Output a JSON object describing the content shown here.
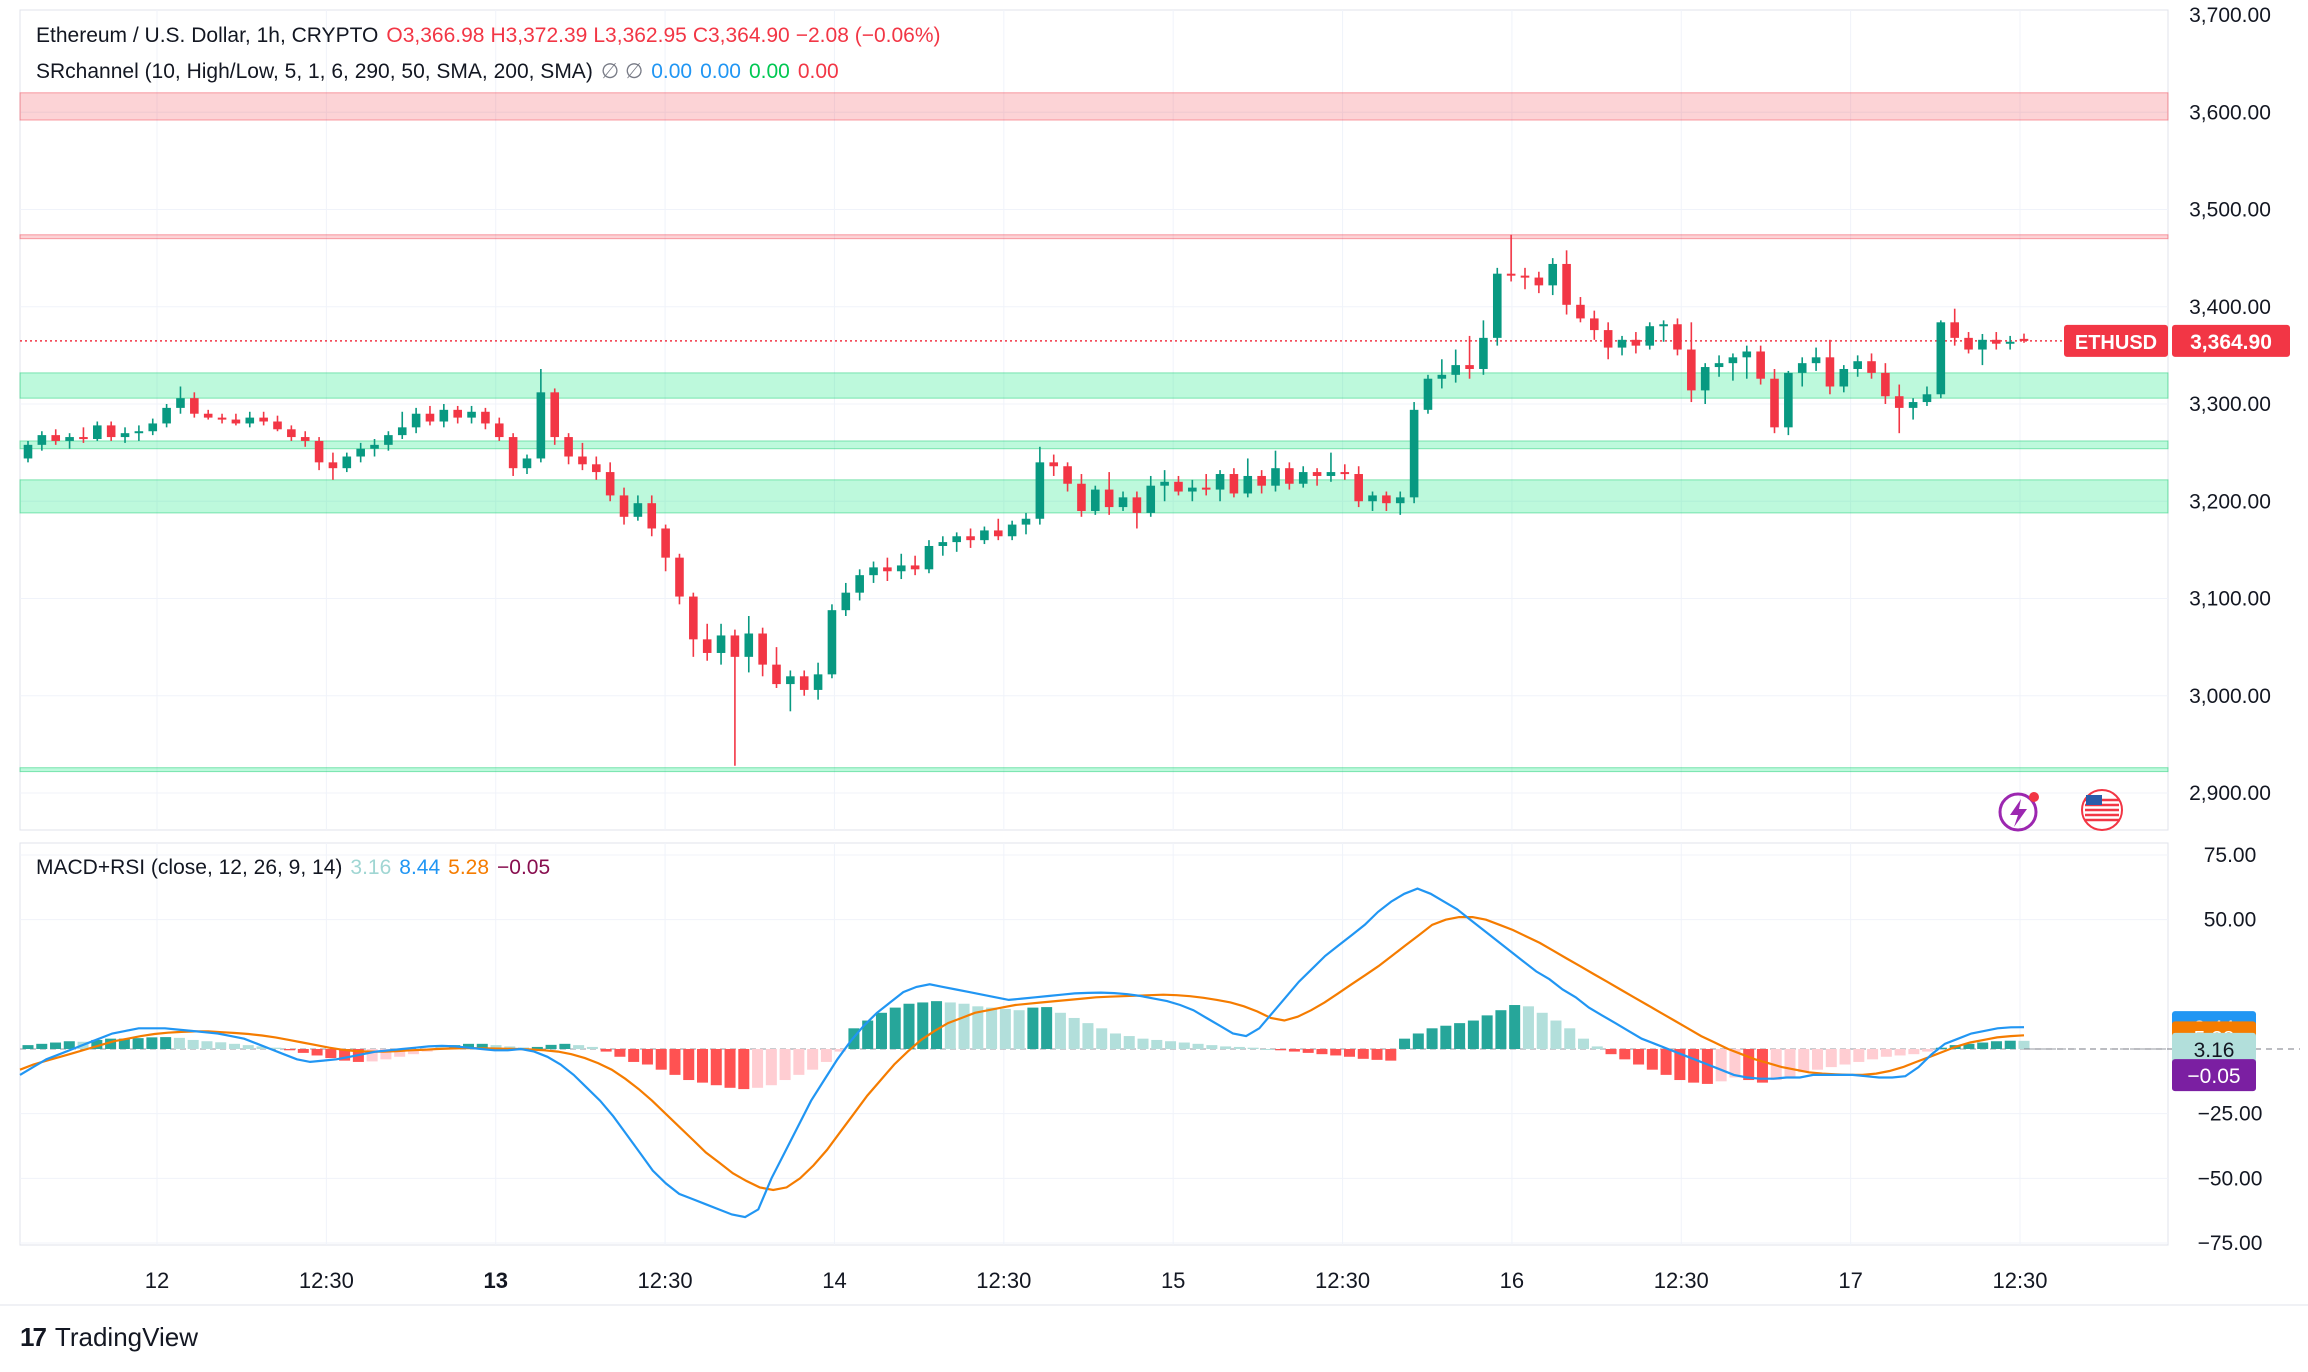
{
  "header": {
    "symbol_title": "Ethereum / U.S. Dollar, 1h, CRYPTO",
    "open": "O3,366.98",
    "high": "H3,372.39",
    "low": "L3,362.95",
    "close": "C3,364.90",
    "change": "−2.08 (−0.06%)",
    "indicator_label": "SRchannel (10, High/Low, 5, 1, 6, 290, 50, SMA, 200, SMA)",
    "indicator_symbols": "∅  ∅",
    "indicator_values": [
      "0.00",
      "0.00",
      "0.00",
      "0.00"
    ],
    "indicator_colors": [
      "#2196f3",
      "#2196f3",
      "#00c853",
      "#f23645"
    ]
  },
  "macd_legend": {
    "label": "MACD+RSI (close, 12, 26, 9, 14)",
    "values": [
      "3.16",
      "8.44",
      "5.28",
      "−0.05"
    ],
    "colors": [
      "#a0d6d3",
      "#2196f3",
      "#f57c00",
      "#880e4f"
    ]
  },
  "price_tag": {
    "symbol": "ETHUSD",
    "value": "3,364.90"
  },
  "macd_tags": [
    {
      "text": "8.44",
      "bg": "#2196f3",
      "fg": "#ffffff"
    },
    {
      "text": "5.28",
      "bg": "#f57c00",
      "fg": "#ffffff"
    },
    {
      "text": "3.16",
      "bg": "#b2dfdb",
      "fg": "#131722"
    },
    {
      "text": "−0.05",
      "bg": "#7b1fa2",
      "fg": "#ffffff"
    }
  ],
  "brand": {
    "name": "TradingView"
  },
  "colors": {
    "up": "#089981",
    "down": "#f23645",
    "grid": "#f0f3fa",
    "axis_text": "#131722"
  },
  "chart_data": {
    "type": "candlestick",
    "price_axis": {
      "range": [
        2855,
        3700
      ],
      "ticks": [
        "3,700.00",
        "3,600.00",
        "3,500.00",
        "3,400.00",
        "3,300.00",
        "3,200.00",
        "3,100.00",
        "3,000.00",
        "2,900.00"
      ]
    },
    "time_axis": {
      "labels": [
        "12",
        "12:30",
        "13",
        "12:30",
        "14",
        "12:30",
        "15",
        "12:30",
        "16",
        "12:30",
        "17",
        "12:30"
      ],
      "bold": [
        false,
        false,
        true,
        false,
        false,
        false,
        false,
        false,
        false,
        false,
        false,
        false
      ]
    },
    "support_resistance_zones": [
      {
        "low": 3592,
        "high": 3620,
        "type": "resistance"
      },
      {
        "low": 3470,
        "high": 3474,
        "type": "resistance"
      },
      {
        "low": 3306,
        "high": 3332,
        "type": "support"
      },
      {
        "low": 3254,
        "high": 3262,
        "type": "support"
      },
      {
        "low": 3188,
        "high": 3222,
        "type": "support"
      },
      {
        "low": 2922,
        "high": 2926,
        "type": "support"
      }
    ],
    "last_price": 3364.9,
    "candles_ohlc": [
      [
        3244,
        3262,
        3240,
        3258
      ],
      [
        3258,
        3272,
        3252,
        3268
      ],
      [
        3268,
        3274,
        3258,
        3262
      ],
      [
        3262,
        3270,
        3254,
        3266
      ],
      [
        3266,
        3276,
        3260,
        3264
      ],
      [
        3264,
        3282,
        3262,
        3278
      ],
      [
        3278,
        3282,
        3262,
        3266
      ],
      [
        3266,
        3276,
        3260,
        3270
      ],
      [
        3270,
        3278,
        3262,
        3272
      ],
      [
        3272,
        3285,
        3268,
        3280
      ],
      [
        3280,
        3300,
        3276,
        3296
      ],
      [
        3296,
        3318,
        3290,
        3306
      ],
      [
        3306,
        3312,
        3286,
        3290
      ],
      [
        3290,
        3294,
        3284,
        3286
      ],
      [
        3286,
        3290,
        3280,
        3284
      ],
      [
        3284,
        3290,
        3278,
        3280
      ],
      [
        3280,
        3292,
        3276,
        3286
      ],
      [
        3286,
        3292,
        3278,
        3282
      ],
      [
        3282,
        3288,
        3272,
        3274
      ],
      [
        3274,
        3278,
        3262,
        3266
      ],
      [
        3266,
        3272,
        3256,
        3262
      ],
      [
        3262,
        3266,
        3232,
        3240
      ],
      [
        3240,
        3250,
        3222,
        3234
      ],
      [
        3234,
        3250,
        3230,
        3246
      ],
      [
        3246,
        3260,
        3240,
        3254
      ],
      [
        3254,
        3264,
        3246,
        3258
      ],
      [
        3258,
        3272,
        3252,
        3268
      ],
      [
        3268,
        3292,
        3264,
        3276
      ],
      [
        3276,
        3296,
        3270,
        3290
      ],
      [
        3290,
        3298,
        3278,
        3282
      ],
      [
        3282,
        3300,
        3276,
        3294
      ],
      [
        3294,
        3298,
        3280,
        3286
      ],
      [
        3286,
        3298,
        3280,
        3292
      ],
      [
        3292,
        3296,
        3274,
        3280
      ],
      [
        3280,
        3286,
        3262,
        3266
      ],
      [
        3266,
        3270,
        3226,
        3234
      ],
      [
        3234,
        3248,
        3228,
        3244
      ],
      [
        3244,
        3336,
        3240,
        3312
      ],
      [
        3312,
        3316,
        3258,
        3266
      ],
      [
        3266,
        3270,
        3238,
        3246
      ],
      [
        3246,
        3260,
        3232,
        3238
      ],
      [
        3238,
        3246,
        3222,
        3230
      ],
      [
        3230,
        3240,
        3200,
        3206
      ],
      [
        3206,
        3214,
        3176,
        3184
      ],
      [
        3184,
        3206,
        3180,
        3198
      ],
      [
        3198,
        3206,
        3164,
        3172
      ],
      [
        3172,
        3176,
        3128,
        3142
      ],
      [
        3142,
        3146,
        3094,
        3102
      ],
      [
        3102,
        3106,
        3040,
        3058
      ],
      [
        3058,
        3074,
        3036,
        3044
      ],
      [
        3044,
        3074,
        3032,
        3062
      ],
      [
        3062,
        3068,
        2928,
        3040
      ],
      [
        3040,
        3082,
        3024,
        3064
      ],
      [
        3064,
        3070,
        3020,
        3032
      ],
      [
        3032,
        3050,
        3008,
        3012
      ],
      [
        3012,
        3026,
        2984,
        3020
      ],
      [
        3020,
        3026,
        3000,
        3006
      ],
      [
        3006,
        3034,
        2996,
        3022
      ],
      [
        3022,
        3094,
        3018,
        3088
      ],
      [
        3088,
        3116,
        3082,
        3106
      ],
      [
        3106,
        3130,
        3098,
        3124
      ],
      [
        3124,
        3138,
        3116,
        3132
      ],
      [
        3132,
        3142,
        3118,
        3128
      ],
      [
        3128,
        3146,
        3120,
        3134
      ],
      [
        3134,
        3144,
        3124,
        3130
      ],
      [
        3130,
        3160,
        3126,
        3154
      ],
      [
        3154,
        3164,
        3144,
        3158
      ],
      [
        3158,
        3168,
        3148,
        3164
      ],
      [
        3164,
        3172,
        3152,
        3160
      ],
      [
        3160,
        3174,
        3156,
        3170
      ],
      [
        3170,
        3182,
        3160,
        3164
      ],
      [
        3164,
        3180,
        3160,
        3176
      ],
      [
        3176,
        3188,
        3166,
        3182
      ],
      [
        3182,
        3256,
        3176,
        3240
      ],
      [
        3240,
        3248,
        3226,
        3236
      ],
      [
        3236,
        3240,
        3210,
        3218
      ],
      [
        3218,
        3228,
        3184,
        3190
      ],
      [
        3190,
        3216,
        3186,
        3212
      ],
      [
        3212,
        3230,
        3186,
        3194
      ],
      [
        3194,
        3210,
        3190,
        3204
      ],
      [
        3204,
        3210,
        3172,
        3188
      ],
      [
        3188,
        3226,
        3184,
        3216
      ],
      [
        3216,
        3232,
        3200,
        3220
      ],
      [
        3220,
        3226,
        3206,
        3210
      ],
      [
        3210,
        3222,
        3200,
        3214
      ],
      [
        3214,
        3228,
        3206,
        3212
      ],
      [
        3212,
        3232,
        3200,
        3228
      ],
      [
        3228,
        3234,
        3204,
        3208
      ],
      [
        3208,
        3244,
        3204,
        3226
      ],
      [
        3226,
        3232,
        3208,
        3216
      ],
      [
        3216,
        3252,
        3210,
        3234
      ],
      [
        3234,
        3240,
        3212,
        3218
      ],
      [
        3218,
        3236,
        3214,
        3230
      ],
      [
        3230,
        3234,
        3216,
        3226
      ],
      [
        3226,
        3250,
        3220,
        3230
      ],
      [
        3230,
        3238,
        3222,
        3228
      ],
      [
        3228,
        3236,
        3194,
        3200
      ],
      [
        3200,
        3210,
        3190,
        3206
      ],
      [
        3206,
        3210,
        3190,
        3198
      ],
      [
        3198,
        3210,
        3186,
        3204
      ],
      [
        3204,
        3302,
        3198,
        3294
      ],
      [
        3294,
        3330,
        3290,
        3326
      ],
      [
        3326,
        3346,
        3316,
        3330
      ],
      [
        3330,
        3356,
        3322,
        3340
      ],
      [
        3340,
        3370,
        3326,
        3336
      ],
      [
        3336,
        3386,
        3330,
        3368
      ],
      [
        3368,
        3440,
        3360,
        3434
      ],
      [
        3434,
        3474,
        3426,
        3432
      ],
      [
        3432,
        3440,
        3418,
        3430
      ],
      [
        3430,
        3436,
        3414,
        3422
      ],
      [
        3422,
        3450,
        3412,
        3444
      ],
      [
        3444,
        3458,
        3392,
        3402
      ],
      [
        3402,
        3410,
        3384,
        3388
      ],
      [
        3388,
        3396,
        3366,
        3376
      ],
      [
        3376,
        3384,
        3346,
        3358
      ],
      [
        3358,
        3370,
        3350,
        3366
      ],
      [
        3366,
        3374,
        3352,
        3360
      ],
      [
        3360,
        3384,
        3356,
        3380
      ],
      [
        3380,
        3386,
        3364,
        3382
      ],
      [
        3382,
        3388,
        3350,
        3356
      ],
      [
        3356,
        3384,
        3302,
        3314
      ],
      [
        3314,
        3342,
        3300,
        3338
      ],
      [
        3338,
        3350,
        3328,
        3342
      ],
      [
        3342,
        3352,
        3324,
        3348
      ],
      [
        3348,
        3360,
        3326,
        3354
      ],
      [
        3354,
        3360,
        3320,
        3326
      ],
      [
        3326,
        3336,
        3270,
        3276
      ],
      [
        3276,
        3334,
        3268,
        3332
      ],
      [
        3332,
        3348,
        3318,
        3342
      ],
      [
        3342,
        3358,
        3334,
        3348
      ],
      [
        3348,
        3366,
        3310,
        3318
      ],
      [
        3318,
        3340,
        3312,
        3336
      ],
      [
        3336,
        3350,
        3328,
        3344
      ],
      [
        3344,
        3352,
        3326,
        3332
      ],
      [
        3332,
        3342,
        3300,
        3308
      ],
      [
        3308,
        3320,
        3270,
        3296
      ],
      [
        3296,
        3306,
        3284,
        3302
      ],
      [
        3302,
        3318,
        3298,
        3310
      ],
      [
        3310,
        3386,
        3306,
        3384
      ],
      [
        3384,
        3398,
        3360,
        3368
      ],
      [
        3368,
        3374,
        3352,
        3356
      ],
      [
        3356,
        3372,
        3340,
        3366
      ],
      [
        3366,
        3374,
        3356,
        3362
      ],
      [
        3362,
        3370,
        3356,
        3364
      ],
      [
        3366.98,
        3372.39,
        3362.95,
        3364.9
      ]
    ],
    "indicator": {
      "name": "MACD+RSI",
      "range": [
        -75,
        75
      ],
      "ticks": [
        "75.00",
        "50.00",
        "−25.00",
        "−50.00",
        "−75.00"
      ],
      "histogram": [
        1.5,
        2,
        2.5,
        3,
        2.8,
        3.5,
        4,
        4,
        4.2,
        4.5,
        4.6,
        4.3,
        3.5,
        3,
        2.6,
        2,
        1.5,
        1,
        0.5,
        -0.5,
        -1.5,
        -2.5,
        -3.5,
        -4.5,
        -5,
        -4.8,
        -4,
        -3,
        -2,
        -1,
        0.5,
        1.5,
        2,
        2,
        1.5,
        1,
        0.6,
        0.8,
        1.6,
        2,
        1.5,
        0.8,
        -1,
        -3,
        -5,
        -6,
        -8,
        -10,
        -12,
        -13,
        -14,
        -15,
        -15.5,
        -15,
        -14,
        -12,
        -10,
        -8,
        -5,
        -1,
        8,
        11,
        14,
        16,
        17.5,
        18,
        18.5,
        18,
        17.5,
        16.5,
        16,
        15.5,
        15,
        16,
        16.2,
        14,
        12,
        10,
        8,
        6,
        5,
        4,
        3.5,
        3,
        2.5,
        2,
        1.5,
        1,
        0.8,
        0.5,
        0,
        -0.5,
        -1,
        -1.5,
        -2,
        -2.5,
        -3,
        -3.8,
        -4.2,
        -4.5,
        4,
        6,
        8,
        9,
        10,
        11,
        13,
        15,
        17,
        16.5,
        14,
        11,
        8,
        4,
        1,
        -2,
        -4,
        -6,
        -8,
        -10,
        -12,
        -13,
        -13.5,
        -12.5,
        -11,
        -12,
        -13,
        -12,
        -11,
        -9,
        -8,
        -7,
        -6,
        -5,
        -4,
        -3,
        -2.5,
        -2,
        -1,
        0.5,
        1.5,
        2,
        2.5,
        3,
        3.2,
        3.16
      ],
      "macd_line": [
        -10,
        -7,
        -4,
        -2,
        0,
        2,
        4,
        6,
        7,
        8,
        8,
        8,
        7.5,
        7,
        6.5,
        6,
        5,
        4,
        2,
        0,
        -2,
        -4,
        -5,
        -4.5,
        -4,
        -3,
        -2,
        -1,
        -0.5,
        0,
        0.5,
        1,
        1.2,
        1,
        0.5,
        0,
        -0.5,
        -0.5,
        0,
        -1,
        -3,
        -6,
        -10,
        -15,
        -20,
        -26,
        -33,
        -40,
        -47,
        -52,
        -56,
        -58,
        -60,
        -62,
        -64,
        -65,
        -62,
        -50,
        -40,
        -30,
        -20,
        -12,
        -4,
        3,
        9,
        14,
        18,
        22,
        24,
        25,
        24,
        23,
        22,
        21,
        20,
        19,
        19.5,
        20,
        20.5,
        21,
        21.5,
        21.7,
        21.8,
        21.6,
        21.2,
        20.5,
        19.5,
        18.5,
        17,
        15,
        12,
        9,
        6,
        5,
        8,
        14,
        20,
        26,
        31,
        36,
        40,
        44,
        48,
        53,
        57,
        60,
        62,
        60,
        57,
        54,
        50,
        46,
        42,
        38,
        34,
        30,
        27,
        23,
        20,
        16,
        13,
        10,
        7,
        4,
        2,
        0,
        -2,
        -4,
        -6,
        -8,
        -10,
        -11,
        -11.5,
        -11.5,
        -11,
        -11,
        -10,
        -10,
        -10,
        -10,
        -10.5,
        -11,
        -11,
        -10.5,
        -7,
        -2,
        2,
        4,
        6,
        7,
        8,
        8.4,
        8.44
      ],
      "signal_line": [
        -8,
        -6,
        -4.5,
        -3,
        -1.5,
        0,
        1.5,
        3,
        4,
        5,
        5.8,
        6.3,
        6.6,
        6.8,
        6.8,
        6.5,
        6.2,
        5.8,
        5.2,
        4.5,
        3.5,
        2.5,
        1.5,
        0.5,
        -0.3,
        -0.8,
        -1,
        -1,
        -0.8,
        -0.5,
        -0.3,
        0,
        0.2,
        0.3,
        0.3,
        0.2,
        0.1,
        0,
        -0.2,
        -0.5,
        -1,
        -2,
        -3.5,
        -5.5,
        -8,
        -11.5,
        -15.5,
        -20,
        -25,
        -30,
        -35,
        -40,
        -44,
        -48,
        -51,
        -53.5,
        -54.5,
        -53.5,
        -50,
        -45,
        -39,
        -32,
        -25,
        -18,
        -12,
        -6,
        -1,
        3.5,
        7,
        10,
        12,
        14,
        15,
        16,
        17,
        17.5,
        18,
        18.5,
        19,
        19.5,
        20,
        20.2,
        20.4,
        20.6,
        20.8,
        21,
        20.8,
        20.4,
        19.8,
        19,
        18,
        16.5,
        14.5,
        12,
        11,
        12.5,
        15,
        18,
        21.5,
        25,
        28.5,
        32,
        36,
        40,
        44,
        48,
        50,
        51,
        51,
        50,
        48,
        46,
        43.5,
        41,
        38,
        35,
        32,
        29,
        26,
        23,
        20,
        17,
        14,
        11,
        8,
        5,
        2.5,
        0,
        -2,
        -4,
        -5.5,
        -7,
        -8,
        -9,
        -9.5,
        -9.8,
        -10,
        -10,
        -9.5,
        -8.5,
        -7,
        -5,
        -3,
        -1,
        1,
        2.5,
        3.5,
        4.5,
        5,
        5.28
      ]
    }
  }
}
